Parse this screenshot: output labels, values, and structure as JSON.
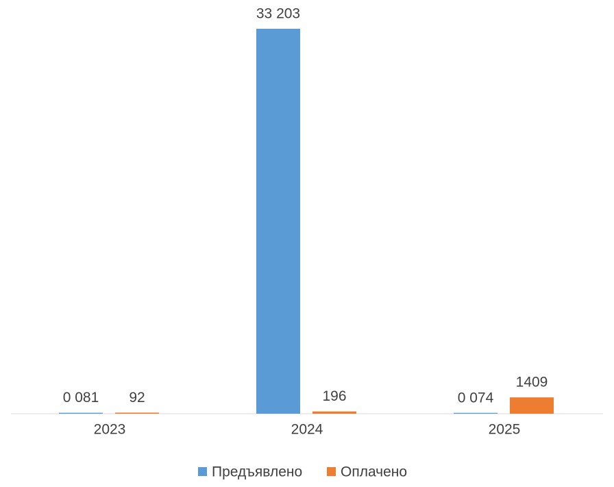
{
  "chart_data": {
    "type": "bar",
    "categories": [
      "2023",
      "2024",
      "2025"
    ],
    "series": [
      {
        "name": "Предъявлено",
        "color": "#5b9bd5",
        "values": [
          81,
          33203,
          74
        ],
        "value_labels": [
          "0 081",
          "33 203",
          "0 074"
        ]
      },
      {
        "name": "Оплачено",
        "color": "#ed7d31",
        "values": [
          92,
          196,
          1409
        ]
      }
    ],
    "legend": "bottom"
  }
}
